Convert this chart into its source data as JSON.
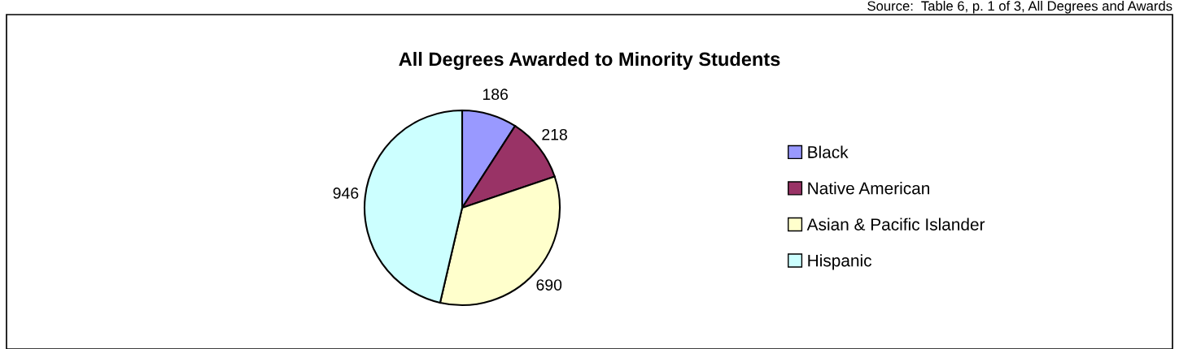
{
  "chart_data": {
    "type": "pie",
    "title": "All Degrees Awarded to Minority Students",
    "annotations": [
      "Source:  Table 6, p. 1 of 3, All Degrees and Awards"
    ],
    "categories": [
      "Black",
      "Native American",
      "Asian & Pacific Islander",
      "Hispanic"
    ],
    "values": [
      186,
      218,
      690,
      946
    ],
    "colors": [
      "#9999ff",
      "#993366",
      "#ffffcc",
      "#ccffff"
    ],
    "data_labels": true,
    "legend": "right"
  }
}
